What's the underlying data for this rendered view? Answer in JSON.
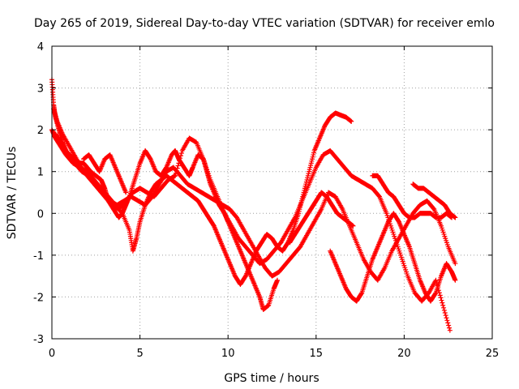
{
  "chart_data": {
    "type": "scatter",
    "title": "Day 265 of 2019, Sidereal Day-to-day VTEC variation (SDTVAR) for receiver emlo",
    "xlabel": "GPS time / hours",
    "ylabel": "SDTVAR / TECUs",
    "xlim": [
      0,
      25
    ],
    "ylim": [
      -3,
      4
    ],
    "xticks": [
      0,
      5,
      10,
      15,
      20,
      25
    ],
    "yticks": [
      -3,
      -2,
      -1,
      0,
      1,
      2,
      3,
      4
    ],
    "grid": true,
    "marker": "+",
    "color": "#ff0000",
    "series": [
      {
        "x": [
          0.0,
          0.1,
          0.2,
          0.4,
          0.6,
          0.8,
          1.0,
          1.3,
          1.6,
          1.8,
          2.0,
          2.2,
          2.5,
          2.8,
          3.0,
          3.2,
          3.5,
          3.8,
          4.0,
          4.2,
          4.4,
          4.7,
          5.0,
          5.3,
          5.6,
          5.9,
          6.2,
          6.5,
          6.8,
          7.0,
          7.2,
          7.5,
          7.8,
          8.0,
          8.3,
          8.6,
          8.8,
          9.0,
          9.3,
          9.5,
          9.8,
          10.0,
          10.3,
          10.6,
          10.9,
          11.2,
          11.5,
          11.8,
          12.0,
          12.3,
          12.6,
          12.8
        ],
        "y": [
          3.2,
          2.6,
          2.3,
          2.0,
          1.7,
          1.5,
          1.4,
          1.3,
          1.2,
          1.2,
          1.1,
          1.0,
          0.9,
          0.8,
          0.6,
          0.3,
          0.1,
          -0.1,
          0.0,
          0.2,
          0.4,
          0.8,
          1.2,
          1.5,
          1.3,
          1.0,
          0.9,
          1.1,
          1.4,
          1.5,
          1.3,
          1.1,
          0.9,
          1.1,
          1.4,
          1.3,
          1.0,
          0.7,
          0.4,
          0.2,
          0.0,
          -0.2,
          -0.5,
          -0.8,
          -1.1,
          -1.4,
          -1.7,
          -2.0,
          -2.3,
          -2.2,
          -1.8,
          -1.6
        ]
      },
      {
        "x": [
          0.0,
          0.2,
          0.5,
          0.8,
          1.2,
          1.6,
          2.0,
          2.4,
          2.8,
          3.2,
          3.6,
          4.0,
          4.4,
          4.6,
          4.8,
          5.0,
          5.3,
          5.6,
          5.9,
          6.2,
          6.5,
          6.8,
          7.1,
          7.4,
          7.7,
          8.0,
          8.3,
          8.6,
          8.9,
          9.2,
          9.5,
          9.8,
          10.1,
          10.4,
          10.7,
          11.0,
          11.3,
          11.6,
          11.9,
          12.2,
          12.5,
          12.8,
          13.1,
          13.4,
          13.7,
          14.0,
          14.3,
          14.6,
          14.9,
          15.2,
          15.5,
          15.8,
          16.1,
          16.4,
          16.7,
          17.0
        ],
        "y": [
          2.0,
          1.8,
          1.6,
          1.4,
          1.2,
          1.1,
          1.0,
          0.8,
          0.6,
          0.4,
          0.2,
          0.0,
          -0.4,
          -0.9,
          -0.6,
          -0.2,
          0.2,
          0.5,
          0.7,
          0.8,
          0.9,
          0.8,
          0.7,
          0.6,
          0.5,
          0.4,
          0.3,
          0.1,
          -0.1,
          -0.3,
          -0.6,
          -0.9,
          -1.2,
          -1.5,
          -1.7,
          -1.5,
          -1.2,
          -0.9,
          -0.7,
          -0.5,
          -0.6,
          -0.8,
          -0.9,
          -0.7,
          -0.4,
          0.0,
          0.5,
          1.0,
          1.5,
          1.8,
          2.1,
          2.3,
          2.4,
          2.35,
          2.3,
          2.2
        ]
      },
      {
        "x": [
          0.1,
          0.3,
          0.6,
          1.0,
          1.4,
          1.8,
          2.2,
          2.6,
          3.0,
          3.4,
          3.8,
          4.2,
          4.6,
          5.0,
          5.4,
          5.8,
          6.2,
          6.6,
          7.0,
          7.4,
          7.8,
          8.2,
          8.6,
          9.0,
          9.4,
          9.8,
          10.2,
          10.6,
          11.0,
          11.4,
          11.8,
          12.2,
          12.6,
          13.0,
          13.4,
          13.8,
          14.2,
          14.6,
          15.0,
          15.4,
          15.8,
          16.2,
          16.6,
          17.0,
          17.4,
          17.8,
          18.2,
          18.6,
          19.0,
          19.4,
          19.8,
          20.2,
          20.6,
          21.0,
          21.4,
          21.8,
          22.2,
          22.6
        ],
        "y": [
          2.5,
          2.2,
          1.9,
          1.6,
          1.3,
          1.0,
          0.8,
          0.6,
          0.4,
          0.2,
          0.1,
          0.3,
          0.5,
          0.6,
          0.5,
          0.4,
          0.6,
          0.8,
          0.9,
          1.5,
          1.8,
          1.7,
          1.3,
          0.8,
          0.4,
          0.0,
          -0.3,
          -0.6,
          -0.8,
          -1.0,
          -1.2,
          -1.1,
          -0.9,
          -0.7,
          -0.4,
          -0.1,
          0.3,
          0.7,
          1.1,
          1.4,
          1.5,
          1.3,
          1.1,
          0.9,
          0.8,
          0.7,
          0.6,
          0.4,
          0.0,
          -0.5,
          -1.0,
          -1.5,
          -1.9,
          -2.1,
          -1.9,
          -1.6,
          -2.2,
          -2.8
        ]
      },
      {
        "x": [
          0.2,
          0.5,
          0.9,
          1.3,
          1.7,
          2.1,
          2.5,
          2.9,
          3.3,
          3.7,
          4.1,
          4.5,
          4.9,
          5.3,
          5.7,
          6.1,
          6.5,
          6.9,
          7.3,
          7.7,
          8.1,
          8.5,
          8.9,
          9.3,
          9.7,
          10.1,
          10.5,
          10.9,
          11.3,
          11.7,
          12.1,
          12.5,
          12.9,
          13.3,
          13.7,
          14.1,
          14.5,
          14.9,
          15.3,
          15.7,
          16.1,
          16.5,
          16.9,
          17.3,
          17.7,
          18.1,
          18.5,
          18.9,
          19.3,
          19.7,
          20.1,
          20.5,
          20.9,
          21.3,
          21.7,
          22.1,
          22.5,
          22.9
        ],
        "y": [
          1.9,
          1.7,
          1.4,
          1.2,
          1.0,
          0.9,
          0.7,
          0.5,
          0.3,
          0.2,
          0.3,
          0.4,
          0.3,
          0.2,
          0.4,
          0.7,
          1.0,
          1.1,
          0.9,
          0.7,
          0.6,
          0.5,
          0.4,
          0.3,
          0.2,
          0.1,
          -0.1,
          -0.4,
          -0.7,
          -1.0,
          -1.3,
          -1.5,
          -1.4,
          -1.2,
          -1.0,
          -0.8,
          -0.5,
          -0.2,
          0.1,
          0.5,
          0.4,
          0.1,
          -0.3,
          -0.7,
          -1.1,
          -1.4,
          -1.6,
          -1.3,
          -0.9,
          -0.6,
          -0.3,
          0.0,
          0.2,
          0.3,
          0.1,
          -0.3,
          -0.8,
          -1.2
        ]
      },
      {
        "x": [
          15.8,
          16.1,
          16.4,
          16.7,
          17.0,
          17.3,
          17.6,
          17.9,
          18.2,
          18.5,
          18.8,
          19.1,
          19.4,
          19.7,
          20.0,
          20.3,
          20.6,
          20.9,
          21.2,
          21.5,
          21.8,
          22.1,
          22.4,
          22.7,
          22.9
        ],
        "y": [
          -0.9,
          -1.2,
          -1.5,
          -1.8,
          -2.0,
          -2.1,
          -1.9,
          -1.5,
          -1.1,
          -0.8,
          -0.5,
          -0.2,
          0.0,
          -0.2,
          -0.5,
          -0.8,
          -1.2,
          -1.6,
          -1.9,
          -2.1,
          -1.9,
          -1.5,
          -1.2,
          -1.4,
          -1.6
        ]
      },
      {
        "x": [
          20.5,
          20.8,
          21.1,
          21.4,
          21.7,
          22.0,
          22.3,
          22.6,
          22.9
        ],
        "y": [
          0.7,
          0.6,
          0.6,
          0.5,
          0.4,
          0.3,
          0.2,
          0.0,
          -0.1
        ]
      },
      {
        "x": [
          18.2,
          18.5,
          18.8,
          19.1,
          19.4,
          19.7,
          20.0,
          20.3,
          20.6,
          20.9,
          21.2,
          21.5,
          21.8,
          22.1,
          22.4,
          22.7
        ],
        "y": [
          0.9,
          0.9,
          0.7,
          0.5,
          0.4,
          0.2,
          0.0,
          -0.1,
          -0.1,
          0.0,
          0.0,
          0.0,
          -0.1,
          -0.1,
          0.0,
          -0.1
        ]
      },
      {
        "x": [
          13.5,
          13.8,
          14.1,
          14.4,
          14.7,
          15.0,
          15.3,
          15.6,
          15.9,
          16.2,
          16.5,
          16.8,
          17.1
        ],
        "y": [
          -0.7,
          -0.5,
          -0.3,
          -0.1,
          0.1,
          0.3,
          0.5,
          0.4,
          0.2,
          0.0,
          -0.1,
          -0.2,
          -0.3
        ]
      },
      {
        "x": [
          1.8,
          2.1,
          2.4,
          2.7,
          3.0,
          3.3,
          3.6,
          3.9,
          4.2
        ],
        "y": [
          1.3,
          1.4,
          1.2,
          1.0,
          1.3,
          1.4,
          1.1,
          0.8,
          0.5
        ]
      }
    ]
  }
}
